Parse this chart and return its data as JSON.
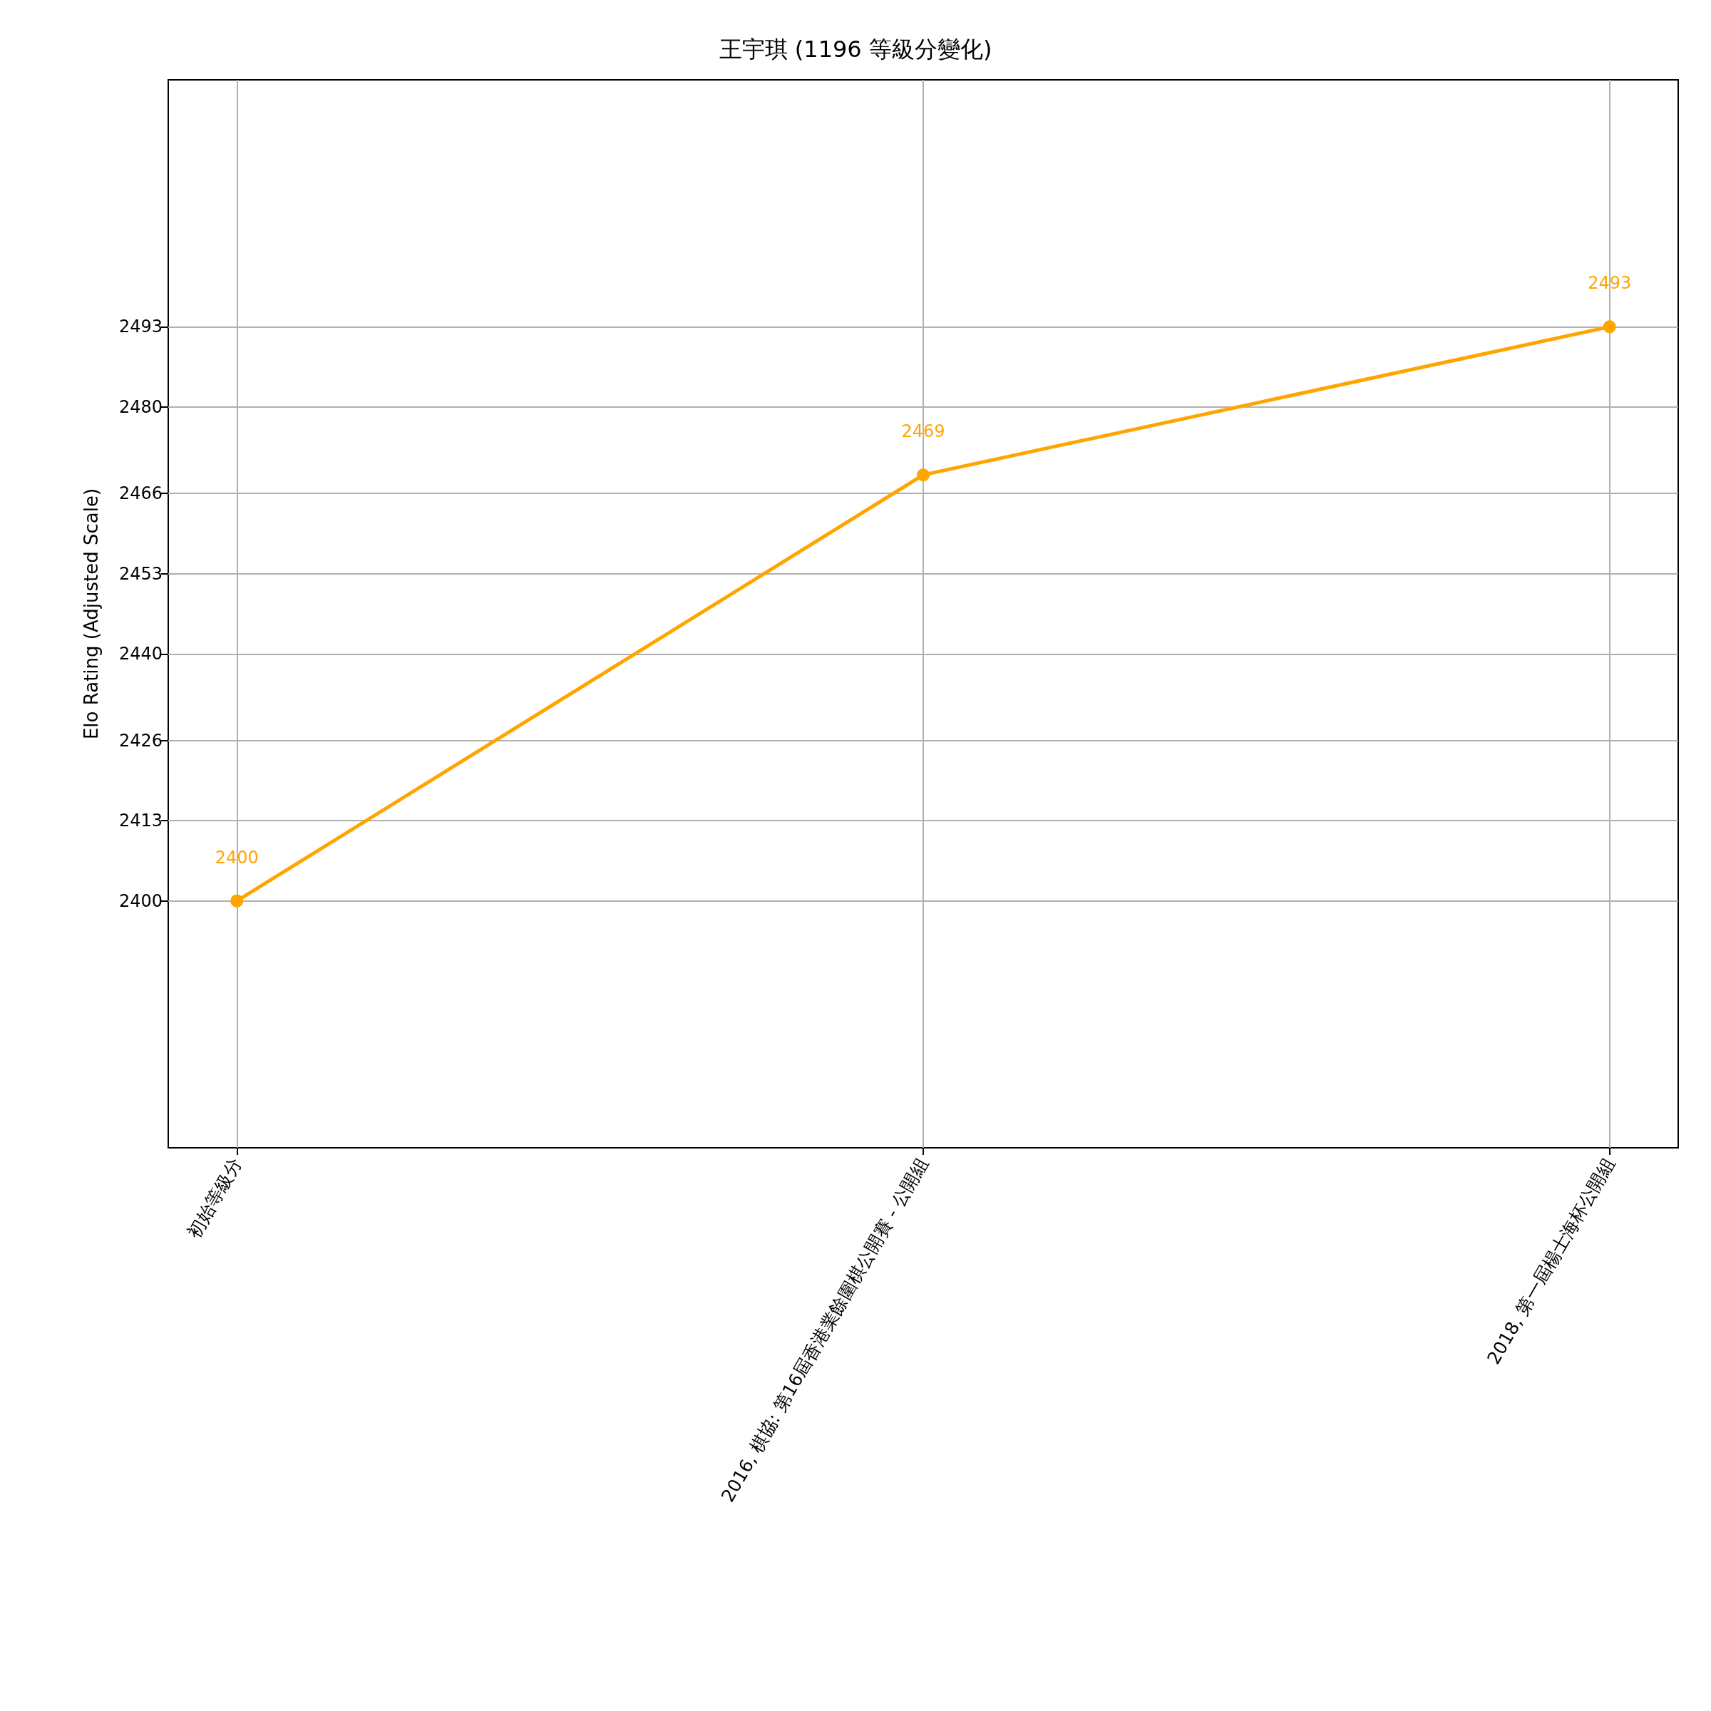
{
  "chart_data": {
    "type": "line",
    "title": "王宇琪 (1196 等級分變化)",
    "ylabel": "Elo Rating (Adjusted Scale)",
    "categories": [
      "初始等級分",
      "2016, 棋協: 第16屆香港業餘圍棋公開賽 - 公開組",
      "2018, 第一屆楊士海杯公開組"
    ],
    "series": [
      {
        "color": "#ffa500",
        "values": [
          2400,
          2469,
          2493
        ]
      }
    ],
    "ylim": [
      2360,
      2533
    ],
    "yticks": [
      2400,
      2413,
      2426,
      2440,
      2453,
      2466,
      2480,
      2493
    ],
    "grid": true,
    "marker": "circle",
    "line_style": "solid",
    "data_labels": true
  }
}
